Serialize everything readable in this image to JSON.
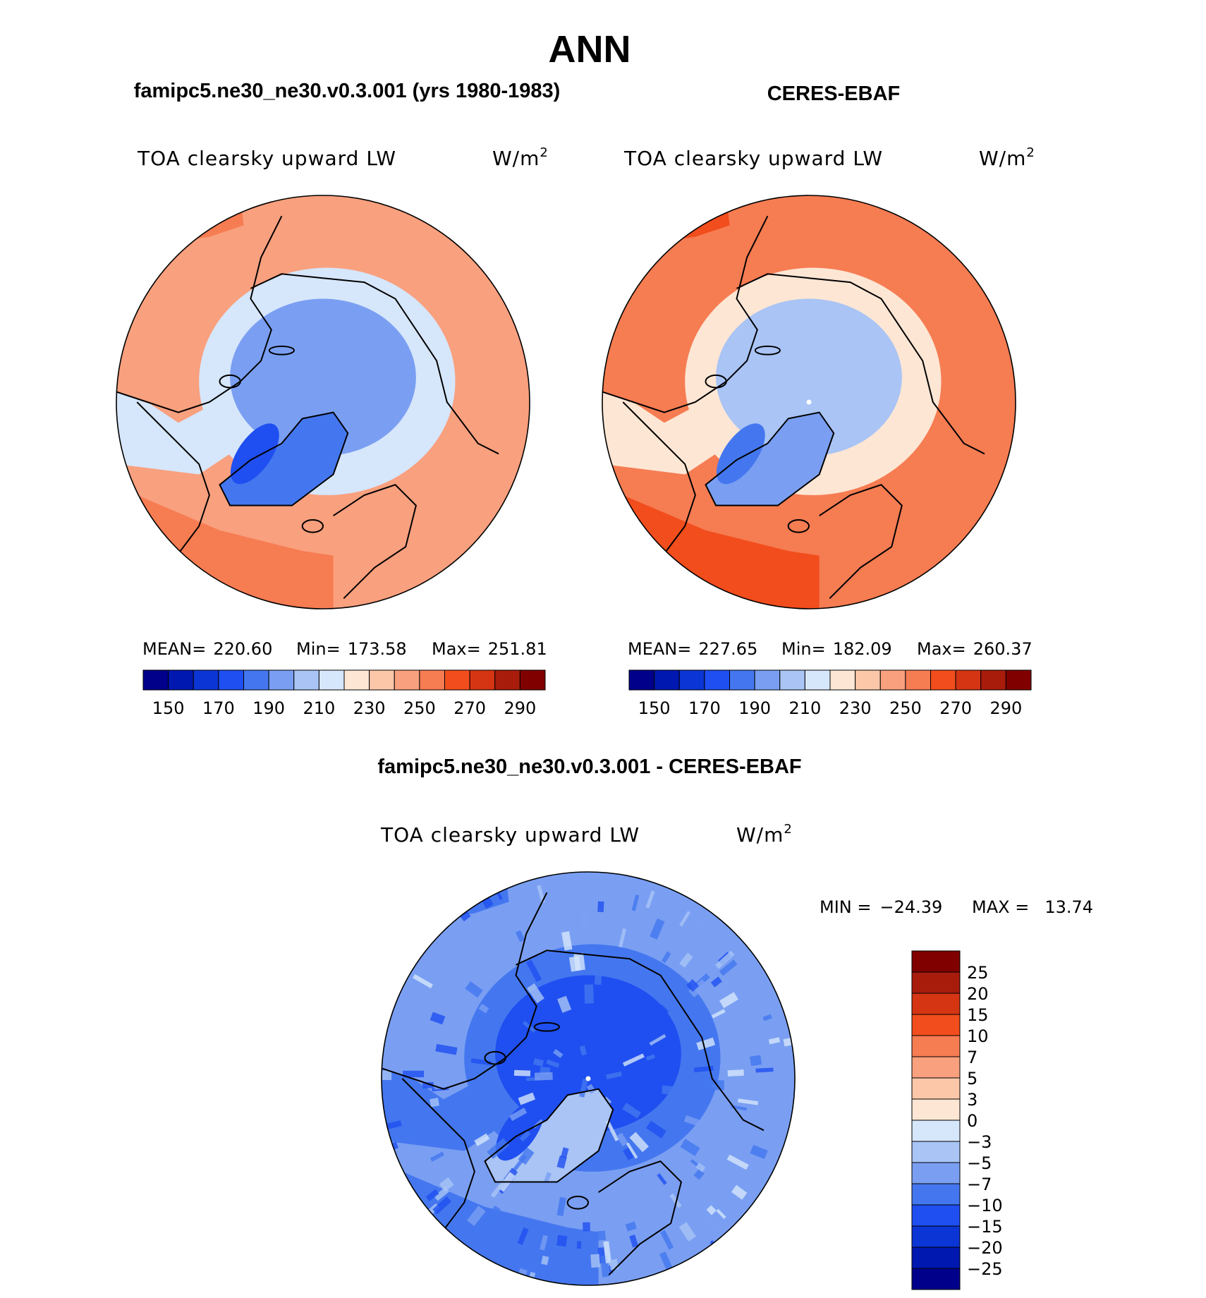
{
  "page_title": "ANN",
  "chart_data": [
    {
      "type": "heatmap",
      "projection": "north-polar-stereographic",
      "case_title": "famipc5.ne30_ne30.v0.3.001 (yrs 1980-1983)",
      "variable": "TOA clearsky upward LW",
      "units": "W/m",
      "units_exp": "2",
      "stats": {
        "mean_label": "MEAN=",
        "mean": "220.60",
        "min_label": "Min=",
        "min": "173.58",
        "max_label": "Max=",
        "max": "251.81"
      },
      "colorbar": {
        "levels": [
          150,
          160,
          170,
          180,
          190,
          200,
          210,
          220,
          230,
          240,
          250,
          260,
          270,
          280,
          290
        ],
        "tick_labels": [
          "150",
          "170",
          "190",
          "210",
          "230",
          "250",
          "270",
          "290"
        ]
      },
      "field_levels": {
        "pole": 195,
        "greenland": 180,
        "arctic_rim": 210,
        "midlat": 240,
        "ocean_band": 250
      }
    },
    {
      "type": "heatmap",
      "projection": "north-polar-stereographic",
      "case_title": "CERES-EBAF",
      "variable": "TOA clearsky upward LW",
      "units": "W/m",
      "units_exp": "2",
      "stats": {
        "mean_label": "MEAN=",
        "mean": "227.65",
        "min_label": "Min=",
        "min": "182.09",
        "max_label": "Max=",
        "max": "260.37"
      },
      "colorbar": {
        "levels": [
          150,
          160,
          170,
          180,
          190,
          200,
          210,
          220,
          230,
          240,
          250,
          260,
          270,
          280,
          290
        ],
        "tick_labels": [
          "150",
          "170",
          "190",
          "210",
          "230",
          "250",
          "270",
          "290"
        ]
      },
      "field_levels": {
        "pole": 205,
        "greenland": 190,
        "arctic_rim": 225,
        "midlat": 250,
        "ocean_band": 265
      }
    },
    {
      "type": "heatmap",
      "projection": "north-polar-stereographic",
      "case_title": "famipc5.ne30_ne30.v0.3.001 - CERES-EBAF",
      "variable": "TOA clearsky upward LW",
      "units": "W/m",
      "units_exp": "2",
      "stats": {
        "min_label": "MIN =",
        "min": "−24.39",
        "max_label": "MAX =",
        "max": "13.74"
      },
      "colorbar": {
        "levels": [
          -25,
          -20,
          -15,
          -10,
          -7,
          -5,
          -3,
          0,
          3,
          5,
          7,
          10,
          15,
          20,
          25
        ],
        "tick_labels": [
          "25",
          "20",
          "15",
          "10",
          "7",
          "5",
          "3",
          "0",
          "−3",
          "−5",
          "−7",
          "−10",
          "−15",
          "−20",
          "−25"
        ]
      },
      "field_levels": {
        "pole": -11,
        "greenland": -4,
        "arctic_rim": -9,
        "midlat": -6,
        "ocean_band": -8
      }
    }
  ],
  "colors": {
    "seq16": [
      "#00008b",
      "#0018b0",
      "#0b35d4",
      "#1f4ff0",
      "#4477ef",
      "#7a9ff2",
      "#a9c4f5",
      "#d6e6fb",
      "#fde6d4",
      "#fcc7a9",
      "#f9a07e",
      "#f67c52",
      "#f24d1c",
      "#d53512",
      "#a81c0c",
      "#800000"
    ],
    "diff16": [
      "#00008b",
      "#0018b0",
      "#0b35d4",
      "#1f4ff0",
      "#4477ef",
      "#7a9ff2",
      "#a9c4f5",
      "#d6e6fb",
      "#fde6d4",
      "#fcc7a9",
      "#f9a07e",
      "#f67c52",
      "#f24d1c",
      "#d53512",
      "#a81c0c",
      "#800000"
    ],
    "coast": "#000000",
    "pole_dot": "#ffffff"
  }
}
